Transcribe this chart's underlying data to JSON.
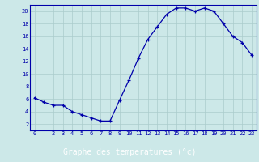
{
  "hours": [
    0,
    1,
    2,
    3,
    4,
    5,
    6,
    7,
    8,
    9,
    10,
    11,
    12,
    13,
    14,
    15,
    16,
    17,
    18,
    19,
    20,
    21,
    22,
    23
  ],
  "temps": [
    6.2,
    5.5,
    5.0,
    5.0,
    4.0,
    3.5,
    3.0,
    2.5,
    2.5,
    5.8,
    9.0,
    12.5,
    15.5,
    17.5,
    19.5,
    20.5,
    20.5,
    20.0,
    20.5,
    20.0,
    18.0,
    16.0,
    15.0,
    13.0
  ],
  "line_color": "#0000aa",
  "marker": "+",
  "bg_color": "#cce8e8",
  "grid_color": "#aacccc",
  "xlabel": "Graphe des temperatures (°c)",
  "xlabel_color": "#ffffff",
  "xlabel_bg": "#0000aa",
  "ylim": [
    1,
    21
  ],
  "yticks": [
    2,
    4,
    6,
    8,
    10,
    12,
    14,
    16,
    18,
    20
  ],
  "xticks": [
    0,
    2,
    3,
    4,
    5,
    6,
    7,
    8,
    9,
    10,
    11,
    12,
    13,
    14,
    15,
    16,
    17,
    18,
    19,
    20,
    21,
    22,
    23
  ],
  "tick_label_fontsize": 5.0,
  "xlabel_fontsize": 7.0,
  "fig_width": 3.2,
  "fig_height": 2.0,
  "dpi": 100
}
